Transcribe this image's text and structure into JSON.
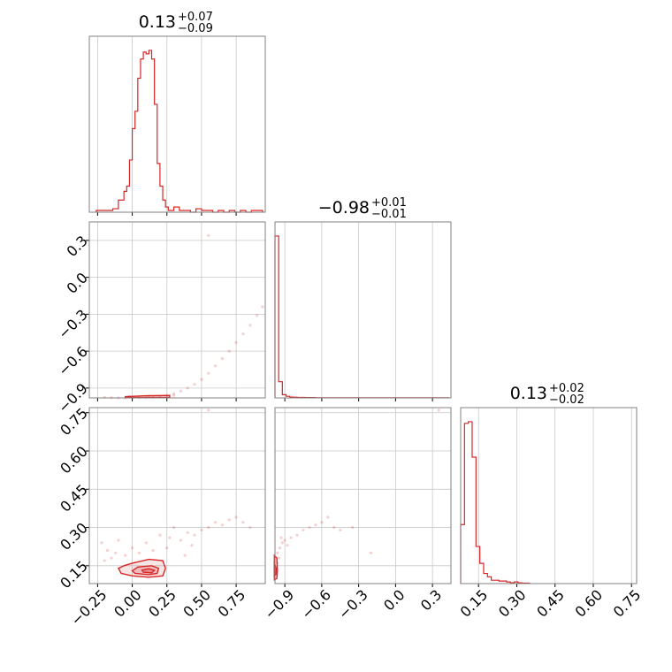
{
  "chart_data": {
    "type": "corner",
    "color": "#d62728",
    "params": [
      {
        "title": {
          "value": "0.13",
          "plus": "+0.07",
          "minus": "−0.09"
        },
        "range": [
          -0.31,
          0.96
        ],
        "ticks": [
          -0.25,
          0.0,
          0.25,
          0.5,
          0.75
        ],
        "tick_labels": [
          "−0.25",
          "0.00",
          "0.25",
          "0.50",
          "0.75"
        ],
        "hist": {
          "edges": [
            -0.26,
            -0.22,
            -0.18,
            -0.14,
            -0.1,
            -0.06,
            -0.04,
            -0.02,
            0.0,
            0.02,
            0.04,
            0.06,
            0.08,
            0.1,
            0.12,
            0.14,
            0.16,
            0.18,
            0.2,
            0.22,
            0.24,
            0.26,
            0.3,
            0.34,
            0.38,
            0.42,
            0.46,
            0.5,
            0.54,
            0.58,
            0.62,
            0.66,
            0.7,
            0.74,
            0.78,
            0.82,
            0.86,
            0.9,
            0.94
          ],
          "counts": [
            1,
            1,
            1,
            2,
            7,
            12,
            15,
            30,
            48,
            58,
            77,
            88,
            92,
            91,
            93,
            88,
            62,
            28,
            15,
            7,
            3,
            1,
            3,
            1,
            1,
            0,
            2,
            1,
            1,
            0,
            1,
            0,
            1,
            0,
            1,
            0,
            1,
            1
          ]
        }
      },
      {
        "title": {
          "value": "−0.98",
          "plus": "+0.01",
          "minus": "−0.01"
        },
        "range": [
          -0.98,
          0.45
        ],
        "ticks": [
          -0.9,
          -0.6,
          -0.3,
          0.0,
          0.3
        ],
        "tick_labels": [
          "−0.9",
          "−0.6",
          "−0.3",
          "0.0",
          "0.3"
        ],
        "hist": {
          "edges": [
            -0.98,
            -0.95,
            -0.92,
            -0.89,
            -0.86,
            -0.83,
            -0.8,
            -0.77,
            -0.74,
            -0.71,
            -0.68,
            -0.65,
            -0.62,
            -0.59,
            -0.56,
            -0.53,
            -0.5,
            -0.47,
            -0.44,
            -0.41,
            -0.38,
            -0.35,
            -0.32,
            -0.29,
            -0.26,
            -0.23,
            -0.2,
            -0.17,
            -0.14,
            -0.11,
            -0.08,
            -0.05,
            -0.02,
            0.01,
            0.04,
            0.07,
            0.1,
            0.13,
            0.16,
            0.19,
            0.22,
            0.25,
            0.28,
            0.31,
            0.34,
            0.37,
            0.4,
            0.43
          ],
          "counts": [
            100,
            10,
            2,
            1,
            0.5,
            0.4,
            0.3,
            0.3,
            0.2,
            0.2,
            0.2,
            0.1,
            0.1,
            0.1,
            0.1,
            0.1,
            0.1,
            0.1,
            0.1,
            0.1,
            0.1,
            0.1,
            0.1,
            0.1,
            0.1,
            0.1,
            0.1,
            0.1,
            0.1,
            0.1,
            0.1,
            0.1,
            0.1,
            0.1,
            0.1,
            0.1,
            0.1,
            0.1,
            0.1,
            0.1,
            0.1,
            0.1,
            0.1,
            0.1,
            0.1,
            0.1,
            0.1
          ]
        }
      },
      {
        "title": {
          "value": "0.13",
          "plus": "+0.02",
          "minus": "−0.02"
        },
        "range": [
          0.08,
          0.77
        ],
        "ticks": [
          0.15,
          0.3,
          0.45,
          0.6,
          0.75
        ],
        "tick_labels": [
          "0.15",
          "0.30",
          "0.45",
          "0.60",
          "0.75"
        ],
        "hist": {
          "edges": [
            0.08,
            0.095,
            0.11,
            0.125,
            0.14,
            0.155,
            0.17,
            0.185,
            0.2,
            0.215,
            0.23,
            0.245,
            0.26,
            0.275,
            0.29,
            0.305,
            0.32,
            0.335,
            0.35
          ],
          "counts": [
            35,
            95,
            96,
            75,
            22,
            12,
            6,
            4,
            2,
            2,
            1.5,
            1.5,
            1,
            0.5,
            1,
            0.5,
            0.3,
            0.3
          ]
        }
      }
    ],
    "scatter": [
      {
        "row": 1,
        "col": 0,
        "points": [
          [
            -0.2,
            -0.975
          ],
          [
            -0.15,
            -0.978
          ],
          [
            -0.1,
            -0.98
          ],
          [
            -0.05,
            -0.982
          ],
          [
            0.0,
            -0.98
          ],
          [
            0.05,
            -0.978
          ],
          [
            0.1,
            -0.976
          ],
          [
            0.15,
            -0.974
          ],
          [
            0.2,
            -0.97
          ],
          [
            0.25,
            -0.96
          ],
          [
            0.3,
            -0.945
          ],
          [
            0.35,
            -0.925
          ],
          [
            0.4,
            -0.9
          ],
          [
            0.45,
            -0.87
          ],
          [
            0.5,
            -0.83
          ],
          [
            0.55,
            -0.78
          ],
          [
            0.6,
            -0.72
          ],
          [
            0.65,
            -0.66
          ],
          [
            0.7,
            -0.6
          ],
          [
            0.75,
            -0.53
          ],
          [
            0.8,
            -0.46
          ],
          [
            0.85,
            -0.39
          ],
          [
            0.9,
            -0.31
          ],
          [
            0.94,
            -0.24
          ],
          [
            0.55,
            0.34
          ],
          [
            0.3,
            -0.96
          ],
          [
            0.12,
            -0.965
          ],
          [
            -0.02,
            -0.97
          ]
        ],
        "contours": [
          [
            [
              -0.05,
              -0.97
            ],
            [
              0.1,
              -0.963
            ],
            [
              0.27,
              -0.96
            ],
            [
              0.27,
              -0.975
            ],
            [
              0.1,
              -0.978
            ],
            [
              -0.05,
              -0.977
            ]
          ]
        ]
      },
      {
        "row": 2,
        "col": 0,
        "points": [
          [
            -0.22,
            0.24
          ],
          [
            -0.18,
            0.21
          ],
          [
            -0.15,
            0.18
          ],
          [
            -0.12,
            0.2
          ],
          [
            -0.1,
            0.25
          ],
          [
            -0.05,
            0.19
          ],
          [
            0.0,
            0.22
          ],
          [
            0.05,
            0.2
          ],
          [
            0.1,
            0.24
          ],
          [
            0.15,
            0.21
          ],
          [
            0.2,
            0.27
          ],
          [
            0.25,
            0.22
          ],
          [
            0.3,
            0.3
          ],
          [
            0.35,
            0.25
          ],
          [
            0.4,
            0.28
          ],
          [
            0.45,
            0.27
          ],
          [
            0.5,
            0.29
          ],
          [
            0.55,
            0.3
          ],
          [
            0.6,
            0.32
          ],
          [
            0.65,
            0.31
          ],
          [
            0.7,
            0.33
          ],
          [
            0.75,
            0.34
          ],
          [
            0.8,
            0.32
          ],
          [
            0.85,
            0.3
          ],
          [
            0.55,
            0.76
          ],
          [
            -0.2,
            0.17
          ],
          [
            0.38,
            0.19
          ],
          [
            0.43,
            0.23
          ],
          [
            0.27,
            0.26
          ]
        ],
        "contours": [
          [
            [
              -0.08,
              0.12
            ],
            [
              0.0,
              0.11
            ],
            [
              0.12,
              0.105
            ],
            [
              0.22,
              0.11
            ],
            [
              0.24,
              0.14
            ],
            [
              0.22,
              0.17
            ],
            [
              0.12,
              0.175
            ],
            [
              0.0,
              0.16
            ],
            [
              -0.06,
              0.15
            ],
            [
              -0.1,
              0.14
            ]
          ],
          [
            [
              0.02,
              0.12
            ],
            [
              0.12,
              0.115
            ],
            [
              0.18,
              0.12
            ],
            [
              0.19,
              0.14
            ],
            [
              0.14,
              0.15
            ],
            [
              0.04,
              0.145
            ],
            [
              0.0,
              0.13
            ]
          ],
          [
            [
              0.08,
              0.125
            ],
            [
              0.14,
              0.122
            ],
            [
              0.16,
              0.132
            ],
            [
              0.12,
              0.138
            ],
            [
              0.07,
              0.133
            ]
          ]
        ]
      },
      {
        "row": 2,
        "col": 1,
        "points": [
          [
            -0.96,
            0.2
          ],
          [
            -0.94,
            0.22
          ],
          [
            -0.92,
            0.24
          ],
          [
            -0.9,
            0.25
          ],
          [
            -0.85,
            0.26
          ],
          [
            -0.8,
            0.27
          ],
          [
            -0.75,
            0.29
          ],
          [
            -0.7,
            0.3
          ],
          [
            -0.65,
            0.31
          ],
          [
            -0.6,
            0.32
          ],
          [
            -0.55,
            0.34
          ],
          [
            -0.5,
            0.3
          ],
          [
            -0.45,
            0.29
          ],
          [
            -0.35,
            0.3
          ],
          [
            -0.2,
            0.2
          ],
          [
            -0.95,
            0.18
          ],
          [
            -0.96,
            0.16
          ],
          [
            -0.93,
            0.26
          ],
          [
            0.35,
            0.76
          ],
          [
            -0.88,
            0.23
          ]
        ],
        "contours": [
          [
            [
              -0.985,
              0.095
            ],
            [
              -0.965,
              0.1
            ],
            [
              -0.96,
              0.13
            ],
            [
              -0.965,
              0.18
            ],
            [
              -0.985,
              0.19
            ]
          ],
          [
            [
              -0.985,
              0.11
            ],
            [
              -0.972,
              0.115
            ],
            [
              -0.97,
              0.14
            ],
            [
              -0.985,
              0.16
            ]
          ]
        ]
      }
    ]
  }
}
